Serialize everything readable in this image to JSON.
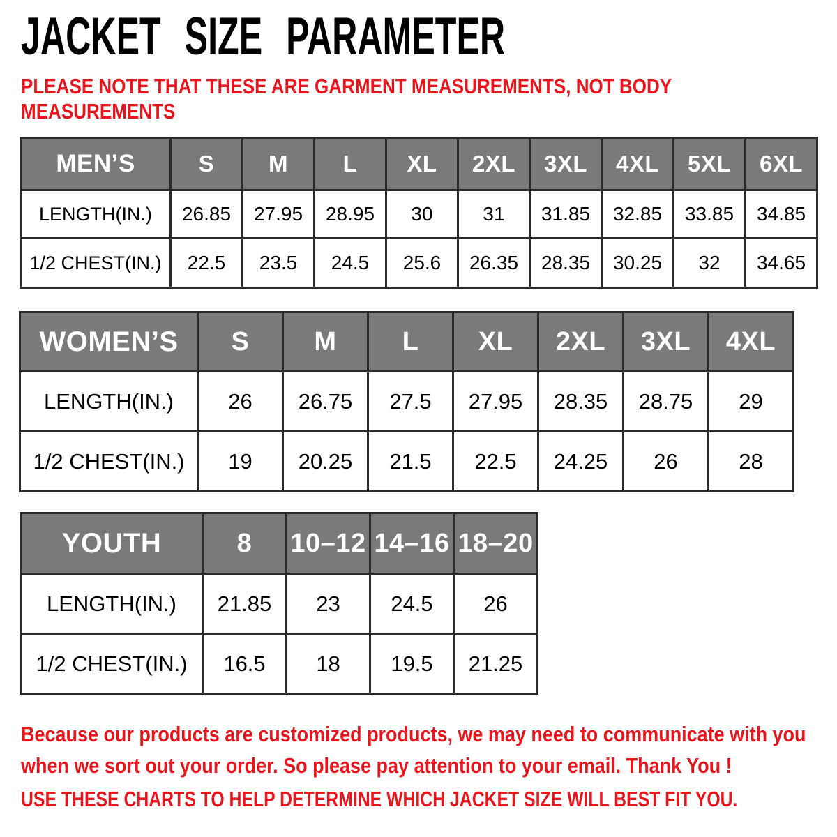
{
  "title": "JACKET SIZE PARAMETER",
  "note_lines": [
    "PLEASE NOTE THAT THESE ARE GARMENT MEASUREMENTS, NOT BODY",
    "MEASUREMENTS"
  ],
  "chart_data": [
    {
      "type": "table",
      "name": "MEN’S",
      "columns": [
        "S",
        "M",
        "L",
        "XL",
        "2XL",
        "3XL",
        "4XL",
        "5XL",
        "6XL"
      ],
      "rows": [
        {
          "label": "LENGTH(IN.)",
          "values": [
            "26.85",
            "27.95",
            "28.95",
            "30",
            "31",
            "31.85",
            "32.85",
            "33.85",
            "34.85"
          ]
        },
        {
          "label": "1/2 CHEST(IN.)",
          "values": [
            "22.5",
            "23.5",
            "24.5",
            "25.6",
            "26.35",
            "28.35",
            "30.25",
            "32",
            "34.65"
          ]
        }
      ]
    },
    {
      "type": "table",
      "name": "WOMEN’S",
      "columns": [
        "S",
        "M",
        "L",
        "XL",
        "2XL",
        "3XL",
        "4XL"
      ],
      "rows": [
        {
          "label": "LENGTH(IN.)",
          "values": [
            "26",
            "26.75",
            "27.5",
            "27.95",
            "28.35",
            "28.75",
            "29"
          ]
        },
        {
          "label": "1/2 CHEST(IN.)",
          "values": [
            "19",
            "20.25",
            "21.5",
            "22.5",
            "24.25",
            "26",
            "28"
          ]
        }
      ]
    },
    {
      "type": "table",
      "name": "YOUTH",
      "columns": [
        "8",
        "10–12",
        "14–16",
        "18–20"
      ],
      "rows": [
        {
          "label": "LENGTH(IN.)",
          "values": [
            "21.85",
            "23",
            "24.5",
            "26"
          ]
        },
        {
          "label": "1/2 CHEST(IN.)",
          "values": [
            "16.5",
            "18",
            "19.5",
            "21.25"
          ]
        }
      ]
    }
  ],
  "footer_lines": [
    "Because our products are customized products, we may need to communicate with you",
    "when we sort out your order. So please pay attention to your email. Thank You !"
  ],
  "usage_line": "USE THESE CHARTS TO HELP DETERMINE WHICH JACKET SIZE WILL BEST FIT YOU.",
  "colors": {
    "accent_red": "#e8151d",
    "header_gray": "#7a7a7a",
    "border_dark": "#2b2b2b",
    "text_black": "#000000"
  }
}
